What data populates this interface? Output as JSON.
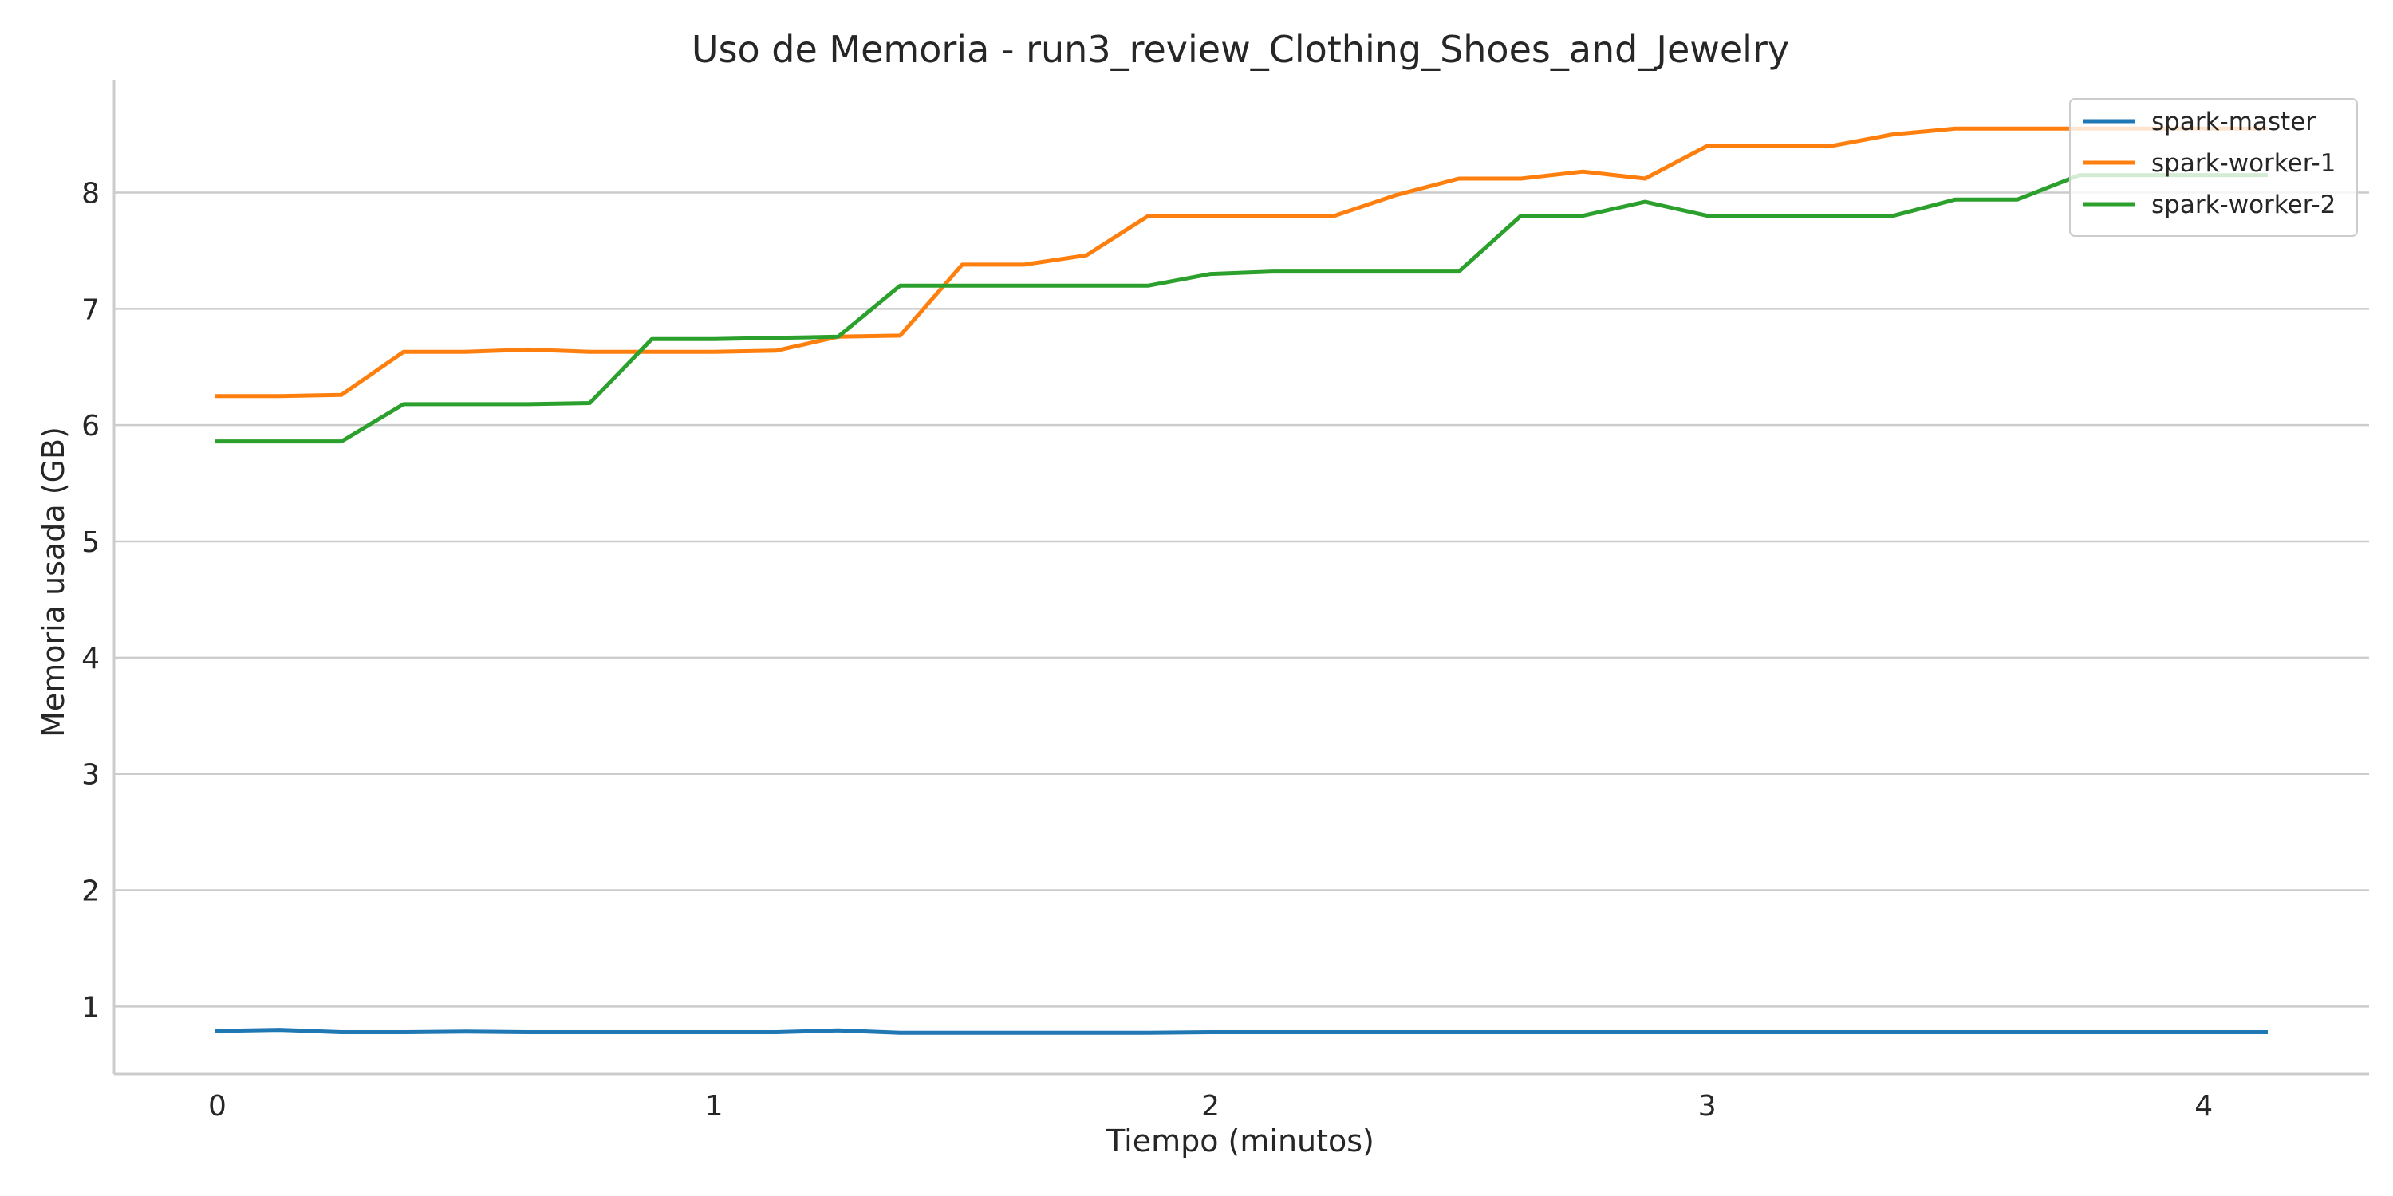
{
  "chart_data": {
    "type": "line",
    "title": "Uso de Memoria - run3_review_Clothing_Shoes_and_Jewelry",
    "xlabel": "Tiempo (minutos)",
    "ylabel": "Memoria usada (GB)",
    "xlim": [
      -0.208,
      4.333
    ],
    "ylim": [
      0.42,
      8.97
    ],
    "xticks": [
      0,
      1,
      2,
      3,
      4
    ],
    "yticks": [
      1,
      2,
      3,
      4,
      5,
      6,
      7,
      8
    ],
    "grid": "horizontal",
    "legend_position": "top-right",
    "x": [
      0.0,
      0.125,
      0.25,
      0.375,
      0.5,
      0.625,
      0.75,
      0.875,
      1.0,
      1.125,
      1.25,
      1.375,
      1.5,
      1.625,
      1.75,
      1.875,
      2.0,
      2.125,
      2.25,
      2.375,
      2.5,
      2.625,
      2.75,
      2.875,
      3.0,
      3.125,
      3.25,
      3.375,
      3.5,
      3.625,
      3.75,
      3.875,
      4.0,
      4.125
    ],
    "series": [
      {
        "name": "spark-master",
        "color": "#1f77b4",
        "values": [
          0.79,
          0.8,
          0.78,
          0.78,
          0.785,
          0.78,
          0.78,
          0.78,
          0.78,
          0.78,
          0.795,
          0.775,
          0.775,
          0.775,
          0.775,
          0.775,
          0.78,
          0.78,
          0.78,
          0.78,
          0.78,
          0.78,
          0.78,
          0.78,
          0.78,
          0.78,
          0.78,
          0.78,
          0.78,
          0.78,
          0.78,
          0.78,
          0.78,
          0.78
        ]
      },
      {
        "name": "spark-worker-1",
        "color": "#ff7f0e",
        "values": [
          6.25,
          6.25,
          6.26,
          6.63,
          6.63,
          6.65,
          6.63,
          6.63,
          6.63,
          6.64,
          6.76,
          6.77,
          7.38,
          7.38,
          7.46,
          7.8,
          7.8,
          7.8,
          7.8,
          7.98,
          8.12,
          8.12,
          8.18,
          8.12,
          8.4,
          8.4,
          8.4,
          8.5,
          8.55,
          8.55,
          8.55,
          8.55,
          8.55,
          8.55
        ]
      },
      {
        "name": "spark-worker-2",
        "color": "#2ca02c",
        "values": [
          5.86,
          5.86,
          5.86,
          6.18,
          6.18,
          6.18,
          6.19,
          6.74,
          6.74,
          6.75,
          6.76,
          7.2,
          7.2,
          7.2,
          7.2,
          7.2,
          7.3,
          7.32,
          7.32,
          7.32,
          7.32,
          7.8,
          7.8,
          7.92,
          7.8,
          7.8,
          7.8,
          7.8,
          7.94,
          7.94,
          8.15,
          8.15,
          8.15,
          8.15
        ]
      }
    ]
  }
}
